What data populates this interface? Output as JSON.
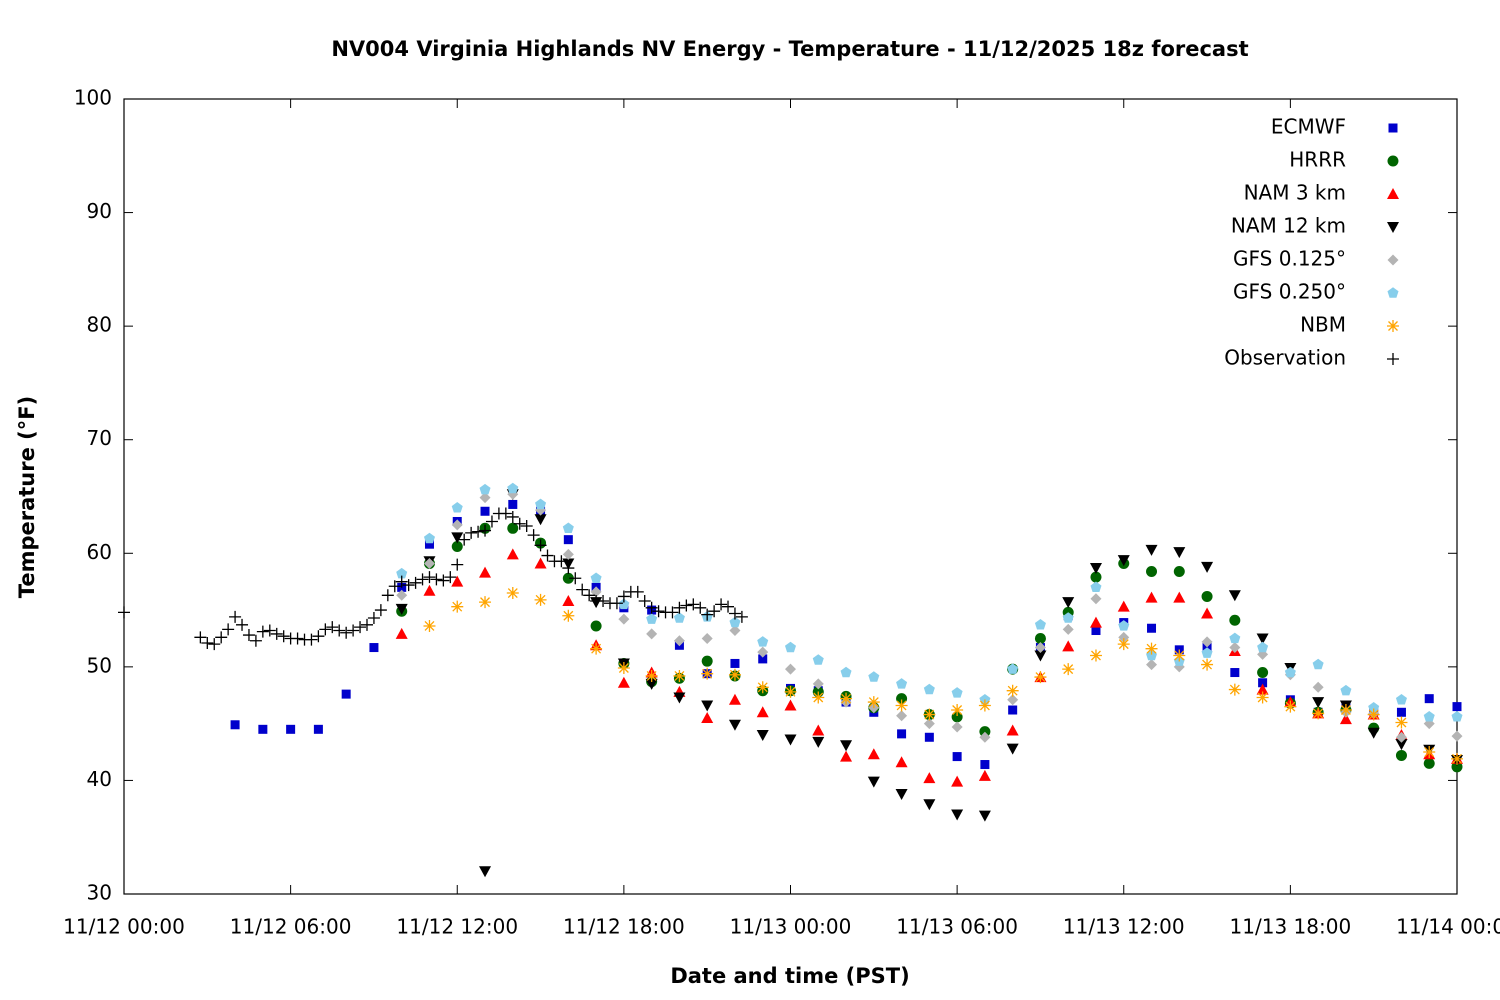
{
  "chart_data": {
    "type": "scatter",
    "title": "NV004 Virginia Highlands NV Energy - Temperature - 11/12/2025 18z forecast",
    "x_label": "Date and time (PST)",
    "y_label": "Temperature (°F)",
    "xlim": [
      "11/12 00:00",
      "11/14 00:00"
    ],
    "xticks": [
      "11/12 00:00",
      "11/12 06:00",
      "11/12 12:00",
      "11/12 18:00",
      "11/13 00:00",
      "11/13 06:00",
      "11/13 12:00",
      "11/13 18:00",
      "11/14 00:00"
    ],
    "ylim": [
      30,
      100
    ],
    "yticks": [
      30,
      40,
      50,
      60,
      70,
      80,
      90,
      100
    ],
    "grid": false,
    "legend": "top right",
    "x": [
      "11/12 04:00",
      "11/12 05:00",
      "11/12 06:00",
      "11/12 07:00",
      "11/12 08:00",
      "11/12 09:00",
      "11/12 10:00",
      "11/12 11:00",
      "11/12 12:00",
      "11/12 13:00",
      "11/12 14:00",
      "11/12 15:00",
      "11/12 16:00",
      "11/12 17:00",
      "11/12 18:00",
      "11/12 19:00",
      "11/12 20:00",
      "11/12 21:00",
      "11/12 22:00",
      "11/12 23:00",
      "11/13 00:00",
      "11/13 01:00",
      "11/13 02:00",
      "11/13 03:00",
      "11/13 04:00",
      "11/13 05:00",
      "11/13 06:00",
      "11/13 07:00",
      "11/13 08:00",
      "11/13 09:00",
      "11/13 10:00",
      "11/13 11:00",
      "11/13 12:00",
      "11/13 13:00",
      "11/13 14:00",
      "11/13 15:00",
      "11/13 16:00",
      "11/13 17:00",
      "11/13 18:00",
      "11/13 19:00",
      "11/13 20:00",
      "11/13 21:00",
      "11/13 22:00",
      "11/13 23:00",
      "11/14 00:00"
    ],
    "series": [
      {
        "name": "ECMWF",
        "color": "#0000cc",
        "marker": "square",
        "values": [
          44.9,
          44.5,
          44.5,
          44.5,
          47.6,
          51.7,
          57.0,
          60.8,
          62.8,
          63.7,
          64.3,
          63.7,
          61.2,
          57.0,
          55.2,
          55.0,
          51.9,
          49.4,
          50.3,
          50.7,
          48.1,
          47.9,
          46.9,
          46.0,
          44.1,
          43.8,
          42.1,
          41.4,
          46.2,
          51.7,
          54.5,
          53.2,
          53.9,
          53.4,
          51.5,
          51.7,
          49.5,
          48.6,
          47.1,
          46.0,
          46.4,
          46.1,
          46.0,
          47.2,
          46.5
        ]
      },
      {
        "name": "HRRR",
        "color": "#006400",
        "marker": "circle",
        "values": [
          null,
          null,
          null,
          null,
          null,
          null,
          54.9,
          59.1,
          60.6,
          62.2,
          62.2,
          60.9,
          57.8,
          53.6,
          50.3,
          48.7,
          49.0,
          50.5,
          49.2,
          47.9,
          47.9,
          47.8,
          47.4,
          46.4,
          47.2,
          45.8,
          45.6,
          44.3,
          49.8,
          52.5,
          54.8,
          57.9,
          59.1,
          58.4,
          58.4,
          56.2,
          54.1,
          49.5,
          46.8,
          46.0,
          46.2,
          44.6,
          42.2,
          41.5,
          41.2
        ]
      },
      {
        "name": "NAM 3 km",
        "color": "#ff0000",
        "marker": "triangle-up",
        "values": [
          null,
          null,
          null,
          null,
          null,
          null,
          52.9,
          56.7,
          57.5,
          58.3,
          59.9,
          59.1,
          55.8,
          51.9,
          48.6,
          49.5,
          47.8,
          45.5,
          47.1,
          46.0,
          46.6,
          44.4,
          42.1,
          42.3,
          41.6,
          40.2,
          39.9,
          40.4,
          44.4,
          49.1,
          51.8,
          53.9,
          55.3,
          56.1,
          56.1,
          54.7,
          51.4,
          48.0,
          46.9,
          45.9,
          45.4,
          45.8,
          44.0,
          42.3,
          41.9
        ]
      },
      {
        "name": "NAM 12 km",
        "color": "#000000",
        "marker": "triangle-down",
        "values": [
          null,
          null,
          null,
          null,
          null,
          null,
          55.1,
          59.3,
          61.4,
          32.0,
          65.2,
          63.0,
          59.1,
          55.7,
          50.3,
          48.5,
          47.3,
          46.6,
          44.9,
          44.0,
          43.6,
          43.4,
          43.1,
          39.9,
          38.8,
          37.9,
          37.0,
          36.9,
          42.8,
          51.0,
          55.7,
          58.7,
          59.4,
          60.3,
          60.1,
          58.8,
          56.3,
          52.5,
          49.9,
          46.9,
          46.6,
          44.2,
          43.2,
          42.7,
          41.8
        ]
      },
      {
        "name": "GFS 0.125°",
        "color": "#b4b4b4",
        "marker": "diamond",
        "values": [
          null,
          null,
          null,
          null,
          null,
          null,
          56.3,
          59.1,
          62.5,
          64.9,
          65.2,
          63.8,
          59.9,
          56.6,
          54.2,
          52.9,
          52.3,
          52.5,
          53.2,
          51.3,
          49.8,
          48.5,
          46.9,
          46.4,
          45.7,
          45.0,
          44.7,
          43.8,
          47.1,
          51.7,
          53.3,
          56.0,
          52.6,
          50.2,
          50.0,
          52.2,
          51.7,
          51.1,
          49.3,
          48.2,
          46.0,
          45.9,
          43.8,
          45.0,
          43.9
        ]
      },
      {
        "name": "GFS 0.250°",
        "color": "#87ceeb",
        "marker": "pentagon",
        "values": [
          null,
          null,
          null,
          null,
          null,
          null,
          58.2,
          61.3,
          64.0,
          65.6,
          65.7,
          64.3,
          62.2,
          57.8,
          55.5,
          54.2,
          54.3,
          54.4,
          53.9,
          52.2,
          51.7,
          50.6,
          49.5,
          49.1,
          48.5,
          48.0,
          47.7,
          47.1,
          49.8,
          53.7,
          54.3,
          57.0,
          53.6,
          51.0,
          50.5,
          51.2,
          52.5,
          51.7,
          49.5,
          50.2,
          47.9,
          46.4,
          47.1,
          45.6,
          45.6
        ]
      },
      {
        "name": "NBM",
        "color": "#ffa500",
        "marker": "asterisk",
        "values": [
          null,
          null,
          null,
          null,
          null,
          null,
          null,
          53.6,
          55.3,
          55.7,
          56.5,
          55.9,
          54.5,
          51.6,
          49.9,
          49.2,
          49.2,
          49.4,
          49.3,
          48.2,
          47.8,
          47.3,
          47.2,
          46.9,
          46.6,
          45.8,
          46.2,
          46.6,
          47.9,
          49.1,
          49.8,
          51.0,
          52.0,
          51.6,
          51.0,
          50.2,
          48.0,
          47.3,
          46.5,
          45.9,
          46.2,
          45.8,
          45.1,
          42.5,
          41.9
        ]
      },
      {
        "name": "Observation",
        "color": "#000000",
        "marker": "plus",
        "x": [
          "11/12 00:00",
          "11/12 02:45",
          "11/12 03:00",
          "11/12 03:15",
          "11/12 03:30",
          "11/12 03:45",
          "11/12 04:00",
          "11/12 04:15",
          "11/12 04:30",
          "11/12 04:45",
          "11/12 05:00",
          "11/12 05:15",
          "11/12 05:30",
          "11/12 05:45",
          "11/12 06:00",
          "11/12 06:15",
          "11/12 06:30",
          "11/12 06:45",
          "11/12 07:00",
          "11/12 07:15",
          "11/12 07:30",
          "11/12 07:45",
          "11/12 08:00",
          "11/12 08:15",
          "11/12 08:30",
          "11/12 08:45",
          "11/12 09:00",
          "11/12 09:15",
          "11/12 09:30",
          "11/12 09:45",
          "11/12 10:00",
          "11/12 10:15",
          "11/12 10:30",
          "11/12 10:45",
          "11/12 11:00",
          "11/12 11:15",
          "11/12 11:30",
          "11/12 11:45",
          "11/12 12:00",
          "11/12 12:15",
          "11/12 12:30",
          "11/12 12:45",
          "11/12 13:00",
          "11/12 13:15",
          "11/12 13:30",
          "11/12 13:45",
          "11/12 14:00",
          "11/12 14:15",
          "11/12 14:30",
          "11/12 14:45",
          "11/12 15:00",
          "11/12 15:15",
          "11/12 15:30",
          "11/12 15:45",
          "11/12 16:00",
          "11/12 16:15",
          "11/12 16:30",
          "11/12 16:45",
          "11/12 17:00",
          "11/12 17:15",
          "11/12 17:30",
          "11/12 17:45",
          "11/12 18:00",
          "11/12 18:15",
          "11/12 18:30",
          "11/12 18:45",
          "11/12 19:00",
          "11/12 19:15",
          "11/12 19:30",
          "11/12 19:45",
          "11/12 20:00",
          "11/12 20:15",
          "11/12 20:30",
          "11/12 20:45",
          "11/12 21:00",
          "11/12 21:15",
          "11/12 21:30",
          "11/12 21:45",
          "11/12 22:00",
          "11/12 22:15"
        ],
        "values": [
          54.8,
          52.6,
          52.1,
          52.0,
          52.6,
          53.3,
          54.4,
          53.7,
          52.8,
          52.3,
          53.1,
          53.2,
          52.9,
          52.7,
          52.5,
          52.5,
          52.4,
          52.4,
          52.7,
          53.3,
          53.5,
          53.2,
          53.0,
          53.2,
          53.5,
          53.7,
          54.3,
          55.0,
          56.3,
          57.1,
          57.5,
          57.2,
          57.4,
          57.7,
          57.9,
          57.7,
          57.6,
          57.9,
          59.0,
          61.2,
          61.8,
          61.9,
          62.0,
          62.8,
          63.5,
          63.5,
          63.2,
          62.6,
          62.4,
          61.6,
          60.7,
          59.8,
          59.3,
          59.3,
          58.7,
          57.8,
          56.8,
          56.3,
          55.8,
          55.8,
          55.6,
          55.6,
          56.2,
          56.6,
          56.6,
          55.8,
          55.2,
          54.9,
          54.8,
          54.8,
          55.2,
          55.4,
          55.5,
          55.2,
          54.6,
          54.9,
          55.5,
          55.3,
          54.7,
          54.4
        ]
      }
    ]
  }
}
